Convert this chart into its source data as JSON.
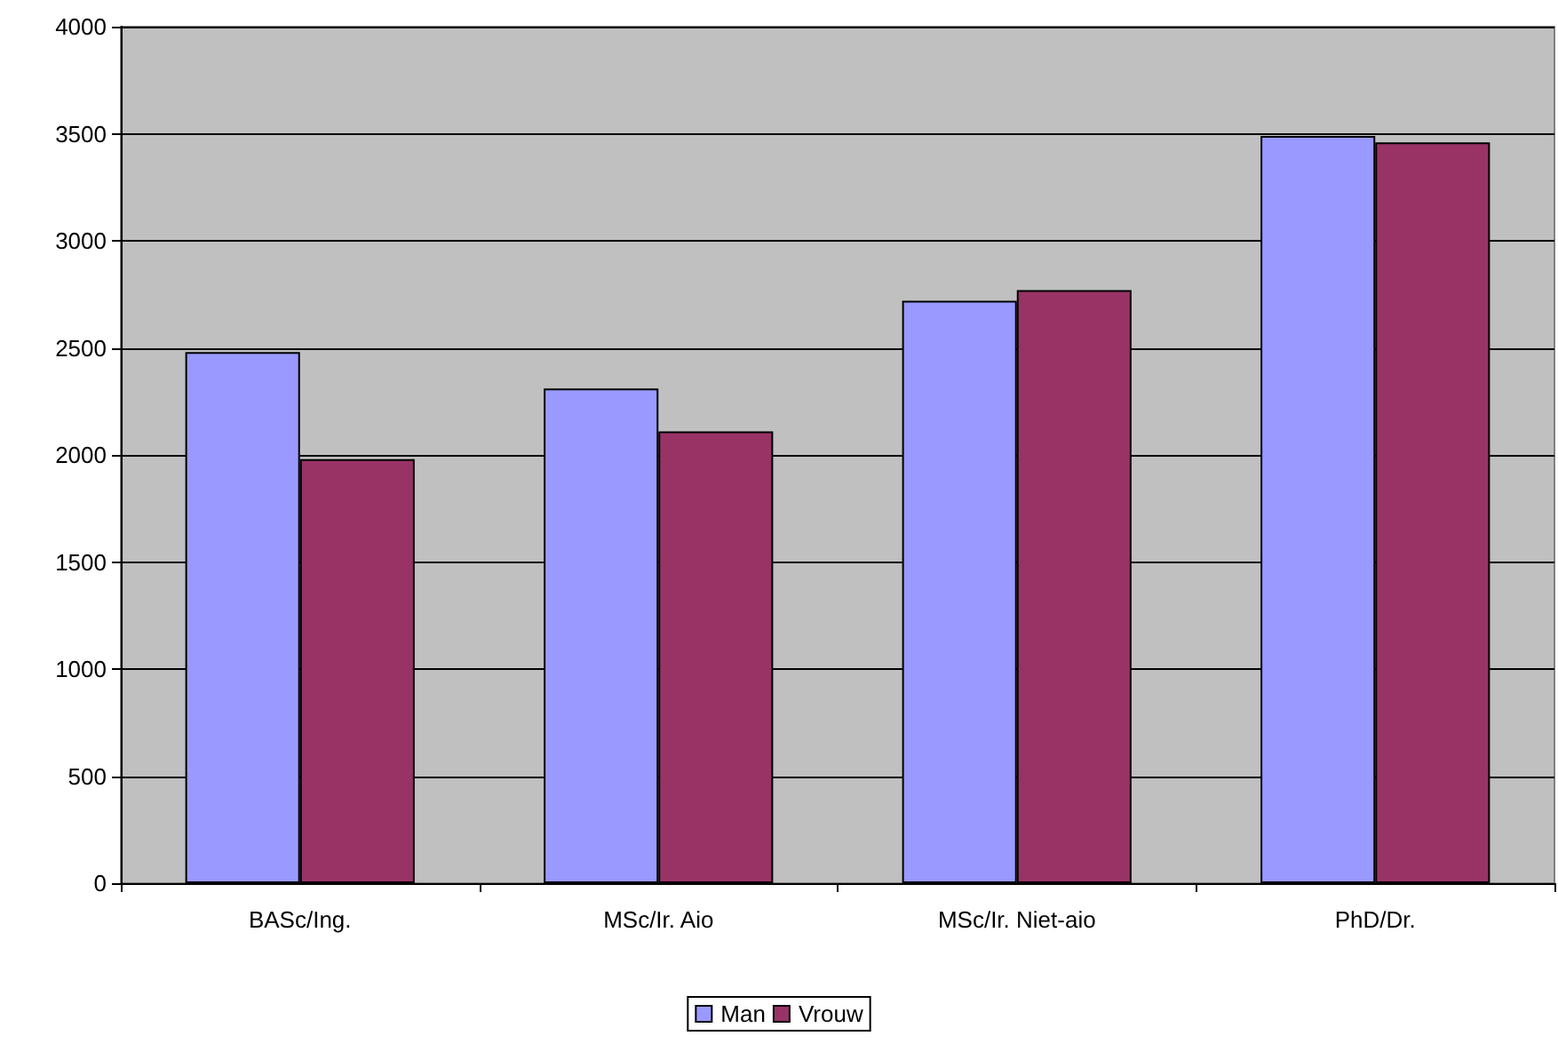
{
  "chart_data": {
    "type": "bar",
    "categories": [
      "BASc/Ing.",
      "MSc/Ir. Aio",
      "MSc/Ir. Niet-aio",
      "PhD/Dr."
    ],
    "series": [
      {
        "name": "Man",
        "color": "#9999ff",
        "values": [
          2480,
          2310,
          2720,
          3490
        ]
      },
      {
        "name": "Vrouw",
        "color": "#993366",
        "values": [
          1980,
          2110,
          2770,
          3460
        ]
      }
    ],
    "ylim": [
      0,
      4000
    ],
    "yticks": [
      0,
      500,
      1000,
      1500,
      2000,
      2500,
      3000,
      3500,
      4000
    ],
    "grid": "y",
    "legend": "bottom"
  }
}
